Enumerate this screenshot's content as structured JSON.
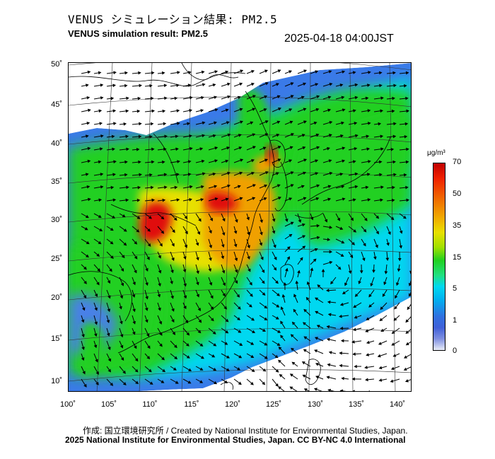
{
  "title_ja": "VENUS シミュレーション結果: PM2.5",
  "title_en": "VENUS simulation result: PM2.5",
  "timestamp": "2025-04-18 04:00JST",
  "lat_ticks": [
    "50˚",
    "45˚",
    "40˚",
    "35˚",
    "30˚",
    "25˚",
    "20˚",
    "15˚",
    "10˚"
  ],
  "lon_ticks": [
    "100˚",
    "105˚",
    "110˚",
    "115˚",
    "120˚",
    "125˚",
    "130˚",
    "135˚",
    "140˚"
  ],
  "colorbar": {
    "unit": "μg/m³",
    "labels": [
      "70",
      "50",
      "35",
      "15",
      "5",
      "1",
      "0"
    ]
  },
  "footer": {
    "credit": "作成: 国立環境研究所 / Created by National Institute for Environmental Studies, Japan.",
    "license": "2025 National Institute for Environmental Studies, Japan. CC BY-NC 4.0 International"
  },
  "colors": {
    "low": "#5070e0",
    "cyan": "#00d8f0",
    "green": "#20d020",
    "yellow": "#e8e000",
    "orange": "#f0a000",
    "red": "#e01010"
  }
}
